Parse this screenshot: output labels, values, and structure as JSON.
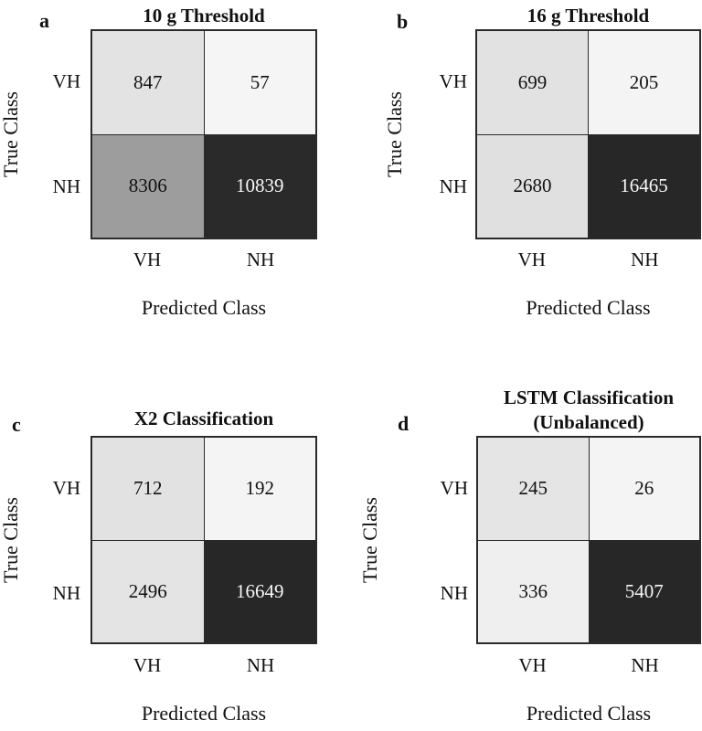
{
  "figure": {
    "x_axis_label": "Predicted Class",
    "y_axis_label": "True Class",
    "class_labels": [
      "VH",
      "NH"
    ],
    "grid_line_color": "#2a2a2a",
    "background_color": "#ffffff"
  },
  "chart_data": [
    {
      "type": "heatmap",
      "panel": "a",
      "title": "10 g Threshold",
      "title_lines": [
        "10 g Threshold"
      ],
      "xlabel": "Predicted Class",
      "ylabel": "True Class",
      "x_categories": [
        "VH",
        "NH"
      ],
      "y_categories": [
        "VH",
        "NH"
      ],
      "values": [
        [
          847,
          57
        ],
        [
          8306,
          10839
        ]
      ],
      "cell_colors": [
        [
          "#e3e3e3",
          "#f5f5f5"
        ],
        [
          "#9d9d9d",
          "#2a2a2a"
        ]
      ],
      "cell_text_colors": [
        [
          "#111111",
          "#111111"
        ],
        [
          "#111111",
          "#f7f7f7"
        ]
      ]
    },
    {
      "type": "heatmap",
      "panel": "b",
      "title": "16 g Threshold",
      "title_lines": [
        "16 g Threshold"
      ],
      "xlabel": "Predicted Class",
      "ylabel": "True Class",
      "x_categories": [
        "VH",
        "NH"
      ],
      "y_categories": [
        "VH",
        "NH"
      ],
      "values": [
        [
          699,
          205
        ],
        [
          2680,
          16465
        ]
      ],
      "cell_colors": [
        [
          "#e2e2e2",
          "#f4f4f4"
        ],
        [
          "#e0e0e0",
          "#272727"
        ]
      ],
      "cell_text_colors": [
        [
          "#111111",
          "#111111"
        ],
        [
          "#111111",
          "#f7f7f7"
        ]
      ]
    },
    {
      "type": "heatmap",
      "panel": "c",
      "title": "X2 Classification",
      "title_lines": [
        "X2 Classification"
      ],
      "xlabel": "Predicted Class",
      "ylabel": "True Class",
      "x_categories": [
        "VH",
        "NH"
      ],
      "y_categories": [
        "VH",
        "NH"
      ],
      "values": [
        [
          712,
          192
        ],
        [
          2496,
          16649
        ]
      ],
      "cell_colors": [
        [
          "#e2e2e2",
          "#f4f4f4"
        ],
        [
          "#e4e4e4",
          "#272727"
        ]
      ],
      "cell_text_colors": [
        [
          "#111111",
          "#111111"
        ],
        [
          "#111111",
          "#f7f7f7"
        ]
      ]
    },
    {
      "type": "heatmap",
      "panel": "d",
      "title": "LSTM Classification (Unbalanced)",
      "title_lines": [
        "LSTM Classification",
        "(Unbalanced)"
      ],
      "xlabel": "Predicted Class",
      "ylabel": "True Class",
      "x_categories": [
        "VH",
        "NH"
      ],
      "y_categories": [
        "VH",
        "NH"
      ],
      "values": [
        [
          245,
          26
        ],
        [
          336,
          5407
        ]
      ],
      "cell_colors": [
        [
          "#e5e5e5",
          "#f4f4f4"
        ],
        [
          "#efefef",
          "#272727"
        ]
      ],
      "cell_text_colors": [
        [
          "#111111",
          "#111111"
        ],
        [
          "#111111",
          "#f7f7f7"
        ]
      ]
    }
  ]
}
